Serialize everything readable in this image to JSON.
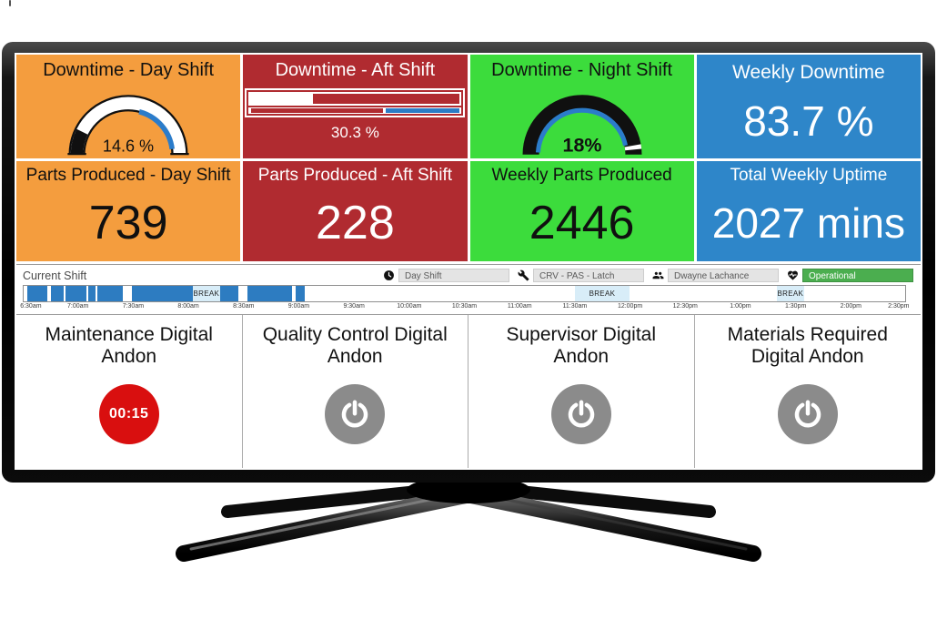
{
  "tiles": {
    "row1": [
      {
        "title": "Downtime - Day Shift",
        "value": "14.6 %",
        "widget": "gauge-outline",
        "value_pct": 14.6,
        "bg": "#F49D3E",
        "accent": "#2B7CCA"
      },
      {
        "title": "Downtime - Aft Shift",
        "value": "30.3 %",
        "widget": "progress-bar",
        "value_pct": 30.3,
        "bg": "#B02B30",
        "accent": "#2B7CC5"
      },
      {
        "title": "Downtime - Night Shift",
        "value": "18%",
        "widget": "gauge-solid",
        "value_pct": 18,
        "bg": "#3CDC3C",
        "accent": "#2B7CCA"
      },
      {
        "title": "Weekly Downtime",
        "value": "83.7 %",
        "widget": "big-number",
        "bg": "#2E86C9"
      }
    ],
    "row2": [
      {
        "title": "Parts Produced - Day Shift",
        "value": "739",
        "bg": "#F49D3E"
      },
      {
        "title": "Parts Produced - Aft Shift",
        "value": "228",
        "bg": "#B02B30"
      },
      {
        "title": "Weekly Parts Produced",
        "value": "2446",
        "bg": "#3CDC3C"
      },
      {
        "title": "Total Weekly Uptime",
        "value": "2027 mins",
        "bg": "#2E86C9"
      }
    ]
  },
  "shift_bar": {
    "label": "Current Shift",
    "statuses": [
      {
        "icon": "clock-icon",
        "value": "Day Shift",
        "variant": "gray"
      },
      {
        "icon": "wrench-icon",
        "value": "CRV - PAS - Latch",
        "variant": "gray"
      },
      {
        "icon": "team-icon",
        "value": "Dwayne Lachance",
        "variant": "gray"
      },
      {
        "icon": "heart-icon",
        "value": "Operational",
        "variant": "green"
      }
    ],
    "timeline": {
      "total_min": 480,
      "ticks": [
        "6:30am",
        "7:00am",
        "7:30am",
        "8:00am",
        "8:30am",
        "9:00am",
        "9:30am",
        "10:00am",
        "10:30am",
        "11:00am",
        "11:30am",
        "12:00pm",
        "12:30pm",
        "1:00pm",
        "1:30pm",
        "2:00pm",
        "2:30pm"
      ],
      "break_label": "BREAK",
      "run_segments_min": [
        [
          2,
          13
        ],
        [
          15,
          22
        ],
        [
          23,
          34
        ],
        [
          35,
          39
        ],
        [
          40,
          54
        ],
        [
          59,
          92
        ],
        [
          107,
          117
        ],
        [
          122,
          146
        ],
        [
          148,
          153
        ]
      ],
      "break_segments_min": [
        [
          92,
          107
        ],
        [
          300,
          330
        ],
        [
          410,
          425
        ]
      ],
      "run_color": "#2D7CC1",
      "break_color": "#D8EDF8"
    }
  },
  "andons": {
    "active_color": "#D90F0F",
    "idle_color": "#8B8B8B",
    "items": [
      {
        "title": "Maintenance Digital Andon",
        "state": "active",
        "timer": "00:15"
      },
      {
        "title": "Quality Control Digital Andon",
        "state": "idle",
        "timer": ""
      },
      {
        "title": "Supervisor Digital Andon",
        "state": "idle",
        "timer": ""
      },
      {
        "title": "Materials Required Digital Andon",
        "state": "idle",
        "timer": ""
      }
    ]
  }
}
